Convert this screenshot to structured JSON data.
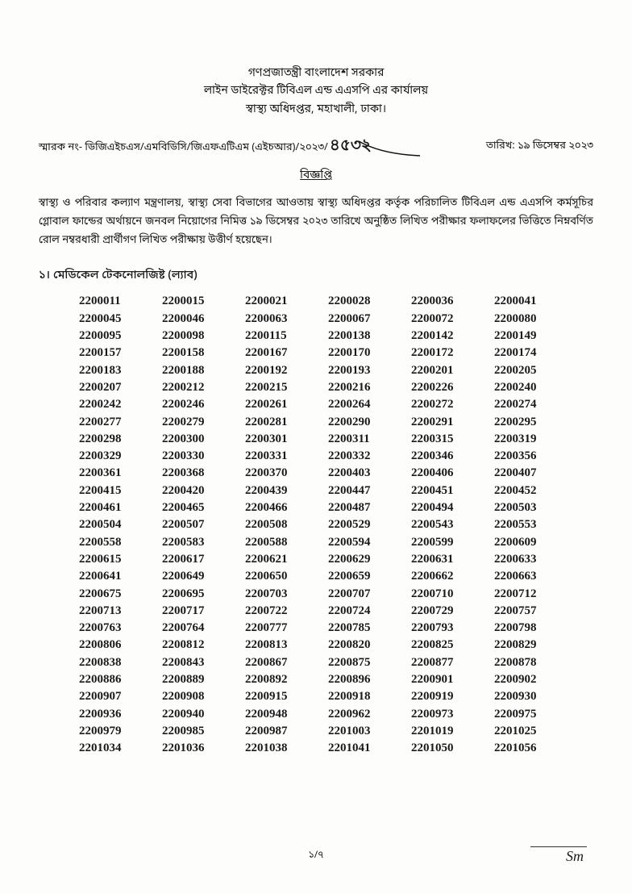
{
  "header": {
    "line1": "গণপ্রজাতন্ত্রী বাংলাদেশ সরকার",
    "line2": "লাইন ডাইরেক্টর টিবিএল এন্ড এএসপি এর কার্যালয়",
    "line3": "স্বাস্থ্য অধিদপ্তর, মহাখালী, ঢাকা।"
  },
  "reference": {
    "prefix": "স্মারক নং- ডিজিএইচএস/এমবিডিসি/জিএফএটিএম (এইচআর)/২০২৩/",
    "handwritten": "৪৫৩২",
    "date": "তারিখ: ১৯ ডিসেম্বর ২০২৩"
  },
  "notice_title": "বিজ্ঞপ্তি",
  "body_text": "স্বাস্থ্য ও পরিবার কল্যাণ মন্ত্রণালয়, স্বাস্থ্য সেবা বিভাগের আওতায় স্বাস্থ্য অধিদপ্তর কর্তৃক পরিচালিত টিবিএল এন্ড এএসপি কর্মসূচির গ্লোবাল ফান্ডের অর্থায়নে জনবল নিয়োগের নিমিত্ত ১৯ ডিসেম্বর ২০২৩ তারিখে অনুষ্ঠিত লিখিত পরীক্ষার ফলাফলের ভিত্তিতে নিম্নবর্ণিত রোল নম্বরধারী প্রার্থীগণ লিখিত পরীক্ষায় উত্তীর্ণ হয়েছেন।",
  "section_title": "১। মেডিকেল টেকনোলজিষ্ট (ল্যাব)",
  "rolls": [
    [
      "2200011",
      "2200015",
      "2200021",
      "2200028",
      "2200036",
      "2200041"
    ],
    [
      "2200045",
      "2200046",
      "2200063",
      "2200067",
      "2200072",
      "2200080"
    ],
    [
      "2200095",
      "2200098",
      "2200115",
      "2200138",
      "2200142",
      "2200149"
    ],
    [
      "2200157",
      "2200158",
      "2200167",
      "2200170",
      "2200172",
      "2200174"
    ],
    [
      "2200183",
      "2200188",
      "2200192",
      "2200193",
      "2200201",
      "2200205"
    ],
    [
      "2200207",
      "2200212",
      "2200215",
      "2200216",
      "2200226",
      "2200240"
    ],
    [
      "2200242",
      "2200246",
      "2200261",
      "2200264",
      "2200272",
      "2200274"
    ],
    [
      "2200277",
      "2200279",
      "2200281",
      "2200290",
      "2200291",
      "2200295"
    ],
    [
      "2200298",
      "2200300",
      "2200301",
      "2200311",
      "2200315",
      "2200319"
    ],
    [
      "2200329",
      "2200330",
      "2200331",
      "2200332",
      "2200346",
      "2200356"
    ],
    [
      "2200361",
      "2200368",
      "2200370",
      "2200403",
      "2200406",
      "2200407"
    ],
    [
      "2200415",
      "2200420",
      "2200439",
      "2200447",
      "2200451",
      "2200452"
    ],
    [
      "2200461",
      "2200465",
      "2200466",
      "2200487",
      "2200494",
      "2200503"
    ],
    [
      "2200504",
      "2200507",
      "2200508",
      "2200529",
      "2200543",
      "2200553"
    ],
    [
      "2200558",
      "2200583",
      "2200588",
      "2200594",
      "2200599",
      "2200609"
    ],
    [
      "2200615",
      "2200617",
      "2200621",
      "2200629",
      "2200631",
      "2200633"
    ],
    [
      "2200641",
      "2200649",
      "2200650",
      "2200659",
      "2200662",
      "2200663"
    ],
    [
      "2200675",
      "2200695",
      "2200703",
      "2200707",
      "2200710",
      "2200712"
    ],
    [
      "2200713",
      "2200717",
      "2200722",
      "2200724",
      "2200729",
      "2200757"
    ],
    [
      "2200763",
      "2200764",
      "2200777",
      "2200785",
      "2200793",
      "2200798"
    ],
    [
      "2200806",
      "2200812",
      "2200813",
      "2200820",
      "2200825",
      "2200829"
    ],
    [
      "2200838",
      "2200843",
      "2200867",
      "2200875",
      "2200877",
      "2200878"
    ],
    [
      "2200886",
      "2200889",
      "2200892",
      "2200896",
      "2200901",
      "2200902"
    ],
    [
      "2200907",
      "2200908",
      "2200915",
      "2200918",
      "2200919",
      "2200930"
    ],
    [
      "2200936",
      "2200940",
      "2200948",
      "2200962",
      "2200973",
      "2200975"
    ],
    [
      "2200979",
      "2200985",
      "2200987",
      "2201003",
      "2201019",
      "2201025"
    ],
    [
      "2201034",
      "2201036",
      "2201038",
      "2201041",
      "2201050",
      "2201056"
    ]
  ],
  "page_number": "১/৭",
  "signature_text": "Sm"
}
